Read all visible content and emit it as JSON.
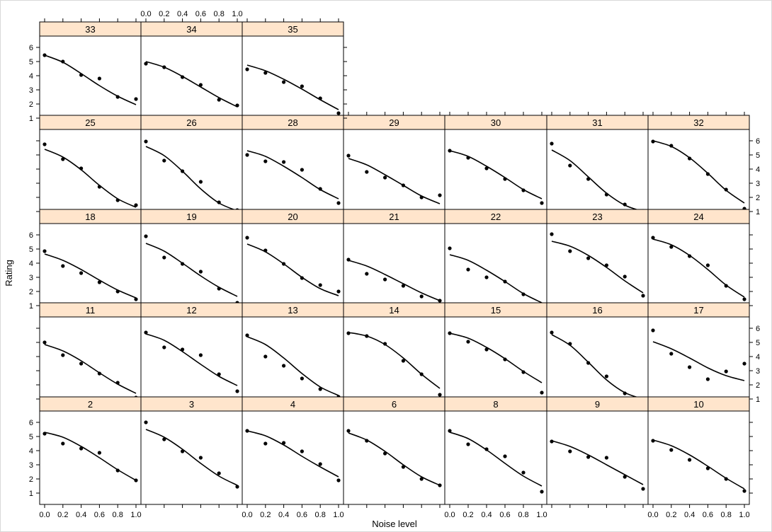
{
  "chart_data": {
    "type": "scatter",
    "layout": "lattice panels, 7 columns x 5 rows, points with fitted curve",
    "xlabel": "Noise level",
    "ylabel": "Rating",
    "xlim": [
      0,
      1
    ],
    "ylim": [
      0.6,
      6.4
    ],
    "x_ticks": [
      "0.0",
      "0.2",
      "0.4",
      "0.6",
      "0.8",
      "1.0"
    ],
    "y_ticks": [
      "1",
      "2",
      "3",
      "4",
      "5",
      "6"
    ],
    "x_values": [
      0.0,
      0.2,
      0.4,
      0.6,
      0.8,
      1.0
    ],
    "strip_color": "#ffe5cc",
    "panels": [
      {
        "label": "2",
        "points": [
          5.2,
          4.5,
          4.15,
          3.85,
          2.6,
          1.9
        ],
        "curve": [
          5.3,
          4.95,
          4.3,
          3.5,
          2.65,
          1.9
        ]
      },
      {
        "label": "3",
        "points": [
          6.0,
          4.8,
          3.95,
          3.5,
          2.4,
          1.45
        ],
        "curve": [
          5.5,
          4.95,
          4.1,
          3.1,
          2.2,
          1.55
        ]
      },
      {
        "label": "4",
        "points": [
          5.4,
          4.5,
          4.55,
          3.95,
          3.05,
          1.9
        ],
        "curve": [
          5.4,
          5.05,
          4.4,
          3.6,
          2.85,
          2.15
        ]
      },
      {
        "label": "6",
        "points": [
          5.4,
          4.7,
          3.8,
          2.85,
          2.0,
          1.55
        ],
        "curve": [
          5.25,
          4.75,
          3.95,
          3.0,
          2.15,
          1.55
        ]
      },
      {
        "label": "8",
        "points": [
          5.4,
          4.45,
          4.1,
          3.6,
          2.45,
          1.1
        ],
        "curve": [
          5.3,
          4.85,
          4.05,
          3.1,
          2.2,
          1.5
        ]
      },
      {
        "label": "9",
        "points": [
          4.65,
          3.95,
          3.55,
          3.5,
          2.15,
          1.3
        ],
        "curve": [
          4.7,
          4.3,
          3.7,
          3.0,
          2.3,
          1.6
        ]
      },
      {
        "label": "10",
        "points": [
          4.7,
          4.05,
          3.35,
          2.75,
          2.0,
          1.15
        ],
        "curve": [
          4.75,
          4.35,
          3.7,
          2.9,
          2.05,
          1.3
        ]
      },
      {
        "label": "11",
        "points": [
          5.0,
          4.1,
          3.5,
          2.8,
          2.15,
          1.1
        ],
        "curve": [
          4.85,
          4.4,
          3.7,
          2.85,
          2.05,
          1.4
        ]
      },
      {
        "label": "12",
        "points": [
          5.7,
          4.65,
          4.5,
          4.1,
          2.75,
          1.55
        ],
        "curve": [
          5.6,
          5.15,
          4.35,
          3.45,
          2.6,
          1.95
        ]
      },
      {
        "label": "13",
        "points": [
          5.5,
          4.0,
          3.35,
          2.45,
          1.7,
          1.15
        ],
        "curve": [
          5.4,
          4.85,
          3.9,
          2.8,
          1.85,
          1.25
        ]
      },
      {
        "label": "14",
        "points": [
          5.65,
          5.45,
          4.9,
          3.7,
          2.75,
          1.3
        ],
        "curve": [
          5.7,
          5.45,
          4.85,
          3.9,
          2.75,
          1.75
        ]
      },
      {
        "label": "15",
        "points": [
          5.65,
          5.05,
          4.5,
          3.8,
          2.9,
          1.45
        ],
        "curve": [
          5.65,
          5.3,
          4.65,
          3.85,
          2.95,
          2.15
        ]
      },
      {
        "label": "16",
        "points": [
          5.7,
          4.9,
          3.55,
          2.6,
          1.4,
          1.0
        ],
        "curve": [
          5.55,
          4.8,
          3.6,
          2.35,
          1.45,
          1.0
        ]
      },
      {
        "label": "17",
        "points": [
          5.85,
          4.2,
          3.25,
          2.4,
          2.95,
          3.5
        ],
        "curve": [
          5.05,
          4.55,
          3.9,
          3.2,
          2.65,
          2.3
        ]
      },
      {
        "label": "18",
        "points": [
          4.85,
          3.8,
          3.3,
          2.65,
          2.0,
          1.45
        ],
        "curve": [
          4.65,
          4.2,
          3.55,
          2.8,
          2.1,
          1.55
        ]
      },
      {
        "label": "19",
        "points": [
          5.9,
          4.4,
          3.95,
          3.4,
          2.2,
          1.2
        ],
        "curve": [
          5.4,
          4.85,
          4.0,
          3.1,
          2.3,
          1.65
        ]
      },
      {
        "label": "20",
        "points": [
          5.8,
          4.9,
          3.95,
          2.95,
          2.45,
          2.0
        ],
        "curve": [
          5.35,
          4.8,
          3.95,
          3.0,
          2.2,
          1.7
        ]
      },
      {
        "label": "21",
        "points": [
          4.25,
          3.25,
          2.85,
          2.4,
          1.65,
          1.35
        ],
        "curve": [
          4.2,
          3.8,
          3.2,
          2.55,
          1.9,
          1.35
        ]
      },
      {
        "label": "22",
        "points": [
          5.05,
          3.55,
          3.0,
          2.7,
          1.8,
          1.0
        ],
        "curve": [
          4.6,
          4.2,
          3.5,
          2.7,
          1.85,
          1.2
        ]
      },
      {
        "label": "23",
        "points": [
          6.05,
          4.85,
          4.35,
          3.85,
          3.05,
          1.7
        ],
        "curve": [
          5.55,
          5.2,
          4.55,
          3.7,
          2.75,
          1.9
        ]
      },
      {
        "label": "24",
        "points": [
          5.8,
          5.15,
          4.5,
          3.85,
          2.4,
          1.45
        ],
        "curve": [
          5.7,
          5.3,
          4.55,
          3.55,
          2.45,
          1.6
        ]
      },
      {
        "label": "25",
        "points": [
          5.75,
          4.7,
          4.05,
          2.75,
          1.8,
          1.45
        ],
        "curve": [
          5.4,
          4.85,
          3.95,
          2.85,
          1.9,
          1.3
        ]
      },
      {
        "label": "26",
        "points": [
          5.95,
          4.6,
          3.85,
          3.1,
          1.65,
          1.1
        ],
        "curve": [
          5.6,
          4.95,
          3.85,
          2.6,
          1.6,
          1.05
        ]
      },
      {
        "label": "28",
        "points": [
          5.0,
          4.55,
          4.5,
          3.95,
          2.6,
          1.6
        ],
        "curve": [
          5.3,
          4.9,
          4.2,
          3.4,
          2.55,
          1.9
        ]
      },
      {
        "label": "29",
        "points": [
          4.95,
          3.8,
          3.4,
          2.85,
          2.0,
          2.15
        ],
        "curve": [
          4.75,
          4.3,
          3.6,
          2.85,
          2.1,
          1.55
        ]
      },
      {
        "label": "30",
        "points": [
          5.3,
          4.8,
          4.05,
          3.3,
          2.5,
          1.6
        ],
        "curve": [
          5.3,
          4.9,
          4.2,
          3.4,
          2.55,
          1.9
        ]
      },
      {
        "label": "31",
        "points": [
          5.8,
          4.25,
          3.3,
          2.2,
          1.5,
          1.05
        ],
        "curve": [
          5.35,
          4.6,
          3.45,
          2.3,
          1.45,
          1.0
        ]
      },
      {
        "label": "32",
        "points": [
          5.95,
          5.65,
          4.75,
          3.65,
          2.55,
          1.2
        ],
        "curve": [
          6.0,
          5.6,
          4.8,
          3.7,
          2.5,
          1.6
        ]
      },
      {
        "label": "33",
        "points": [
          5.45,
          5.0,
          4.05,
          3.8,
          2.5,
          2.35
        ],
        "curve": [
          5.45,
          4.95,
          4.15,
          3.3,
          2.55,
          1.95
        ]
      },
      {
        "label": "34",
        "points": [
          4.85,
          4.6,
          3.9,
          3.35,
          2.3,
          1.9
        ],
        "curve": [
          5.0,
          4.6,
          3.95,
          3.2,
          2.45,
          1.8
        ]
      },
      {
        "label": "35",
        "points": [
          4.45,
          4.2,
          3.55,
          3.25,
          2.4,
          1.35
        ],
        "curve": [
          4.75,
          4.35,
          3.75,
          3.05,
          2.3,
          1.6
        ]
      }
    ]
  }
}
